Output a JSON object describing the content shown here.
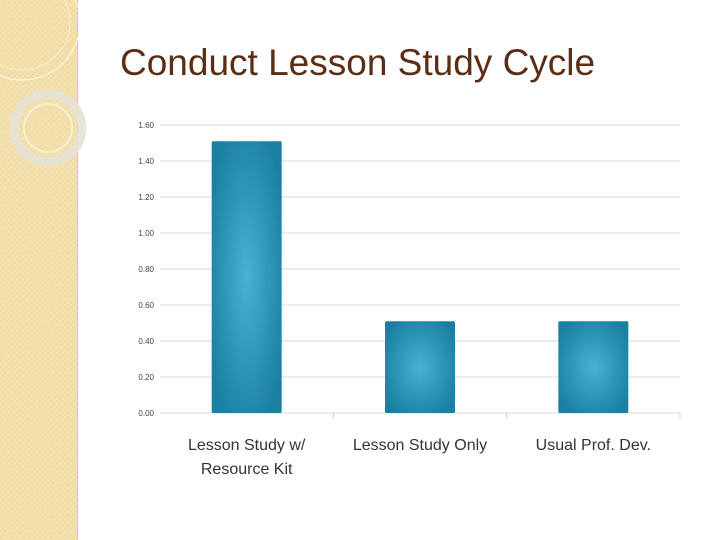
{
  "slide": {
    "title": "Conduct Lesson Study Cycle"
  },
  "chart_data": {
    "type": "bar",
    "categories": [
      [
        "Lesson Study w/",
        "Resource Kit"
      ],
      [
        "Lesson Study Only"
      ],
      [
        "Usual Prof. Dev."
      ]
    ],
    "values": [
      1.51,
      0.51,
      0.51
    ],
    "y_ticks": [
      "0.00",
      "0.20",
      "0.40",
      "0.60",
      "0.80",
      "1.00",
      "1.20",
      "1.40",
      "1.60"
    ],
    "ylim": [
      0,
      1.6
    ],
    "grid": true,
    "colors": {
      "bar_light": "#49b1d3",
      "bar_dark": "#1a7fa0",
      "grid": "#d9d9d9",
      "axis_text": "#444444",
      "category_text": "#333333"
    }
  },
  "theme": {
    "title_color": "#5b2d14",
    "strip_color": "#f3dfa9"
  }
}
